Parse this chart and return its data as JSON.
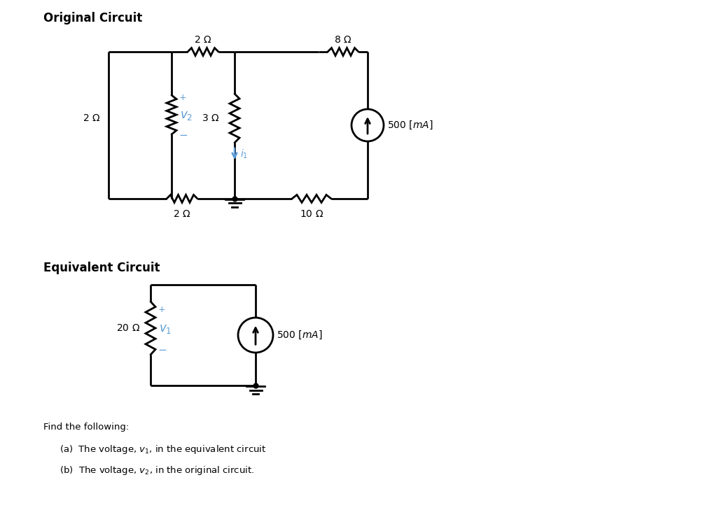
{
  "title1": "Original Circuit",
  "title2": "Equivalent Circuit",
  "bg_color": "#ffffff",
  "line_color": "#000000",
  "blue_color": "#5b9bd5",
  "text_color": "#000000",
  "lw": 2.0,
  "font_size_label": 10,
  "font_size_title": 12
}
